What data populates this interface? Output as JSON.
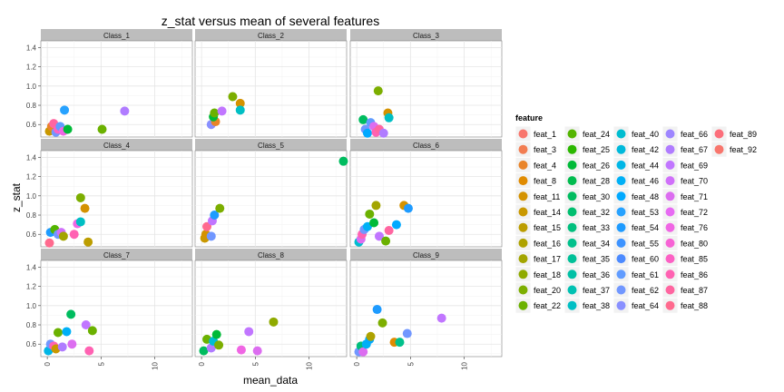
{
  "chart_data": {
    "type": "scatter",
    "title": "z_stat versus mean of several features",
    "xlabel": "mean_data",
    "ylabel": "z_stat",
    "xlim": [
      -0.6,
      13.5
    ],
    "ylim": [
      0.47,
      1.47
    ],
    "x_ticks": [
      0,
      5,
      10
    ],
    "y_ticks": [
      0.6,
      0.8,
      1.0,
      1.2,
      1.4
    ],
    "x_tick_labels": [
      "0",
      "5",
      "10"
    ],
    "y_tick_labels": [
      "0.6",
      "0.8",
      "1.0",
      "1.2",
      "1.4"
    ],
    "grid": true,
    "legend_position": "right",
    "legend_title": "feature",
    "features": [
      {
        "name": "feat_1",
        "color": "#F8766D"
      },
      {
        "name": "feat_3",
        "color": "#F27D52"
      },
      {
        "name": "feat_4",
        "color": "#E98429"
      },
      {
        "name": "feat_8",
        "color": "#E08B00"
      },
      {
        "name": "feat_11",
        "color": "#D49200"
      },
      {
        "name": "feat_14",
        "color": "#C99800"
      },
      {
        "name": "feat_15",
        "color": "#BC9D00"
      },
      {
        "name": "feat_16",
        "color": "#AEA200"
      },
      {
        "name": "feat_17",
        "color": "#A3A500"
      },
      {
        "name": "feat_18",
        "color": "#8FAA00"
      },
      {
        "name": "feat_20",
        "color": "#7CAE00"
      },
      {
        "name": "feat_22",
        "color": "#6BB100"
      },
      {
        "name": "feat_24",
        "color": "#53B400"
      },
      {
        "name": "feat_25",
        "color": "#2BB700"
      },
      {
        "name": "feat_26",
        "color": "#00BA38"
      },
      {
        "name": "feat_28",
        "color": "#00BB4E"
      },
      {
        "name": "feat_30",
        "color": "#00BC5F"
      },
      {
        "name": "feat_32",
        "color": "#00BE6F"
      },
      {
        "name": "feat_33",
        "color": "#00BF7D"
      },
      {
        "name": "feat_34",
        "color": "#00C08B"
      },
      {
        "name": "feat_35",
        "color": "#00C098"
      },
      {
        "name": "feat_36",
        "color": "#00C0A5"
      },
      {
        "name": "feat_37",
        "color": "#00C1B2"
      },
      {
        "name": "feat_38",
        "color": "#00BFC4"
      },
      {
        "name": "feat_40",
        "color": "#00BDD0"
      },
      {
        "name": "feat_42",
        "color": "#00B9DB"
      },
      {
        "name": "feat_44",
        "color": "#00B6E6"
      },
      {
        "name": "feat_46",
        "color": "#00B0F6"
      },
      {
        "name": "feat_48",
        "color": "#00A9FF"
      },
      {
        "name": "feat_53",
        "color": "#27A2FF"
      },
      {
        "name": "feat_54",
        "color": "#1E9BFF"
      },
      {
        "name": "feat_55",
        "color": "#3D93FF"
      },
      {
        "name": "feat_60",
        "color": "#4C8AFF"
      },
      {
        "name": "feat_61",
        "color": "#619CFF"
      },
      {
        "name": "feat_62",
        "color": "#7197FF"
      },
      {
        "name": "feat_64",
        "color": "#8990FF"
      },
      {
        "name": "feat_66",
        "color": "#9E86FF"
      },
      {
        "name": "feat_67",
        "color": "#B07CFF"
      },
      {
        "name": "feat_69",
        "color": "#C176FF"
      },
      {
        "name": "feat_70",
        "color": "#D070FA"
      },
      {
        "name": "feat_71",
        "color": "#DC6DF0"
      },
      {
        "name": "feat_72",
        "color": "#E76BF3"
      },
      {
        "name": "feat_76",
        "color": "#F066E4"
      },
      {
        "name": "feat_80",
        "color": "#F763D5"
      },
      {
        "name": "feat_85",
        "color": "#FC61C4"
      },
      {
        "name": "feat_86",
        "color": "#FF62B2"
      },
      {
        "name": "feat_87",
        "color": "#FF65A0"
      },
      {
        "name": "feat_88",
        "color": "#FF6A8E"
      },
      {
        "name": "feat_89",
        "color": "#FC6F7B"
      },
      {
        "name": "feat_92",
        "color": "#F8766D"
      }
    ],
    "panels": [
      {
        "name": "Class_1",
        "points": [
          {
            "x": 0.2,
            "y": 0.53,
            "feature": "feat_14"
          },
          {
            "x": 0.4,
            "y": 0.58,
            "feature": "feat_4"
          },
          {
            "x": 0.6,
            "y": 0.61,
            "feature": "feat_87"
          },
          {
            "x": 0.8,
            "y": 0.52,
            "feature": "feat_62"
          },
          {
            "x": 1.0,
            "y": 0.55,
            "feature": "feat_85"
          },
          {
            "x": 1.2,
            "y": 0.58,
            "feature": "feat_61"
          },
          {
            "x": 1.5,
            "y": 0.53,
            "feature": "feat_76"
          },
          {
            "x": 1.9,
            "y": 0.55,
            "feature": "feat_26"
          },
          {
            "x": 1.6,
            "y": 0.75,
            "feature": "feat_53"
          },
          {
            "x": 5.1,
            "y": 0.55,
            "feature": "feat_22"
          },
          {
            "x": 7.2,
            "y": 0.74,
            "feature": "feat_67"
          }
        ]
      },
      {
        "name": "Class_2",
        "points": [
          {
            "x": 0.9,
            "y": 0.6,
            "feature": "feat_64"
          },
          {
            "x": 1.3,
            "y": 0.63,
            "feature": "feat_4"
          },
          {
            "x": 1.1,
            "y": 0.68,
            "feature": "feat_26"
          },
          {
            "x": 1.2,
            "y": 0.72,
            "feature": "feat_22"
          },
          {
            "x": 1.9,
            "y": 0.74,
            "feature": "feat_69"
          },
          {
            "x": 2.9,
            "y": 0.89,
            "feature": "feat_20"
          },
          {
            "x": 3.6,
            "y": 0.82,
            "feature": "feat_11"
          },
          {
            "x": 3.6,
            "y": 0.75,
            "feature": "feat_38"
          }
        ]
      },
      {
        "name": "Class_3",
        "points": [
          {
            "x": 0.6,
            "y": 0.65,
            "feature": "feat_30"
          },
          {
            "x": 0.8,
            "y": 0.55,
            "feature": "feat_62"
          },
          {
            "x": 1.0,
            "y": 0.51,
            "feature": "feat_48"
          },
          {
            "x": 1.3,
            "y": 0.62,
            "feature": "feat_61"
          },
          {
            "x": 1.6,
            "y": 0.58,
            "feature": "feat_71"
          },
          {
            "x": 1.8,
            "y": 0.52,
            "feature": "feat_86"
          },
          {
            "x": 2.1,
            "y": 0.55,
            "feature": "feat_87"
          },
          {
            "x": 2.5,
            "y": 0.51,
            "feature": "feat_67"
          },
          {
            "x": 2.0,
            "y": 0.95,
            "feature": "feat_20"
          },
          {
            "x": 2.9,
            "y": 0.72,
            "feature": "feat_11"
          },
          {
            "x": 3.0,
            "y": 0.67,
            "feature": "feat_38"
          }
        ]
      },
      {
        "name": "Class_4",
        "points": [
          {
            "x": 0.2,
            "y": 0.51,
            "feature": "feat_88"
          },
          {
            "x": 0.3,
            "y": 0.62,
            "feature": "feat_54"
          },
          {
            "x": 0.7,
            "y": 0.65,
            "feature": "feat_24"
          },
          {
            "x": 1.0,
            "y": 0.6,
            "feature": "feat_62"
          },
          {
            "x": 1.3,
            "y": 0.62,
            "feature": "feat_70"
          },
          {
            "x": 1.5,
            "y": 0.58,
            "feature": "feat_17"
          },
          {
            "x": 2.5,
            "y": 0.6,
            "feature": "feat_86"
          },
          {
            "x": 2.8,
            "y": 0.71,
            "feature": "feat_76"
          },
          {
            "x": 3.1,
            "y": 0.73,
            "feature": "feat_38"
          },
          {
            "x": 3.1,
            "y": 0.98,
            "feature": "feat_20"
          },
          {
            "x": 3.5,
            "y": 0.87,
            "feature": "feat_11"
          },
          {
            "x": 3.8,
            "y": 0.52,
            "feature": "feat_15"
          }
        ]
      },
      {
        "name": "Class_5",
        "points": [
          {
            "x": 0.3,
            "y": 0.56,
            "feature": "feat_14"
          },
          {
            "x": 0.4,
            "y": 0.6,
            "feature": "feat_11"
          },
          {
            "x": 0.5,
            "y": 0.68,
            "feature": "feat_88"
          },
          {
            "x": 0.9,
            "y": 0.58,
            "feature": "feat_62"
          },
          {
            "x": 1.0,
            "y": 0.74,
            "feature": "feat_69"
          },
          {
            "x": 1.2,
            "y": 0.8,
            "feature": "feat_54"
          },
          {
            "x": 1.7,
            "y": 0.87,
            "feature": "feat_20"
          },
          {
            "x": 13.2,
            "y": 1.36,
            "feature": "feat_30"
          }
        ]
      },
      {
        "name": "Class_6",
        "points": [
          {
            "x": 0.2,
            "y": 0.52,
            "feature": "feat_40"
          },
          {
            "x": 0.4,
            "y": 0.55,
            "feature": "feat_71"
          },
          {
            "x": 0.5,
            "y": 0.6,
            "feature": "feat_86"
          },
          {
            "x": 0.7,
            "y": 0.65,
            "feature": "feat_62"
          },
          {
            "x": 1.0,
            "y": 0.68,
            "feature": "feat_46"
          },
          {
            "x": 1.2,
            "y": 0.81,
            "feature": "feat_22"
          },
          {
            "x": 1.6,
            "y": 0.72,
            "feature": "feat_26"
          },
          {
            "x": 1.8,
            "y": 0.9,
            "feature": "feat_17"
          },
          {
            "x": 2.1,
            "y": 0.58,
            "feature": "feat_69"
          },
          {
            "x": 2.7,
            "y": 0.53,
            "feature": "feat_22"
          },
          {
            "x": 3.0,
            "y": 0.64,
            "feature": "feat_87"
          },
          {
            "x": 3.7,
            "y": 0.7,
            "feature": "feat_48"
          },
          {
            "x": 4.4,
            "y": 0.9,
            "feature": "feat_11"
          },
          {
            "x": 4.8,
            "y": 0.87,
            "feature": "feat_54"
          }
        ]
      },
      {
        "name": "Class_7",
        "points": [
          {
            "x": 0.1,
            "y": 0.53,
            "feature": "feat_44"
          },
          {
            "x": 0.3,
            "y": 0.6,
            "feature": "feat_62"
          },
          {
            "x": 0.6,
            "y": 0.58,
            "feature": "feat_86"
          },
          {
            "x": 0.8,
            "y": 0.55,
            "feature": "feat_14"
          },
          {
            "x": 1.0,
            "y": 0.72,
            "feature": "feat_22"
          },
          {
            "x": 1.4,
            "y": 0.57,
            "feature": "feat_67"
          },
          {
            "x": 1.8,
            "y": 0.73,
            "feature": "feat_46"
          },
          {
            "x": 2.2,
            "y": 0.91,
            "feature": "feat_30"
          },
          {
            "x": 2.3,
            "y": 0.6,
            "feature": "feat_71"
          },
          {
            "x": 3.6,
            "y": 0.8,
            "feature": "feat_69"
          },
          {
            "x": 3.9,
            "y": 0.53,
            "feature": "feat_86"
          },
          {
            "x": 4.2,
            "y": 0.74,
            "feature": "feat_22"
          }
        ]
      },
      {
        "name": "Class_8",
        "points": [
          {
            "x": 0.2,
            "y": 0.53,
            "feature": "feat_30"
          },
          {
            "x": 0.5,
            "y": 0.65,
            "feature": "feat_22"
          },
          {
            "x": 0.9,
            "y": 0.56,
            "feature": "feat_67"
          },
          {
            "x": 1.1,
            "y": 0.63,
            "feature": "feat_40"
          },
          {
            "x": 1.4,
            "y": 0.7,
            "feature": "feat_26"
          },
          {
            "x": 1.6,
            "y": 0.59,
            "feature": "feat_20"
          },
          {
            "x": 3.7,
            "y": 0.54,
            "feature": "feat_76"
          },
          {
            "x": 4.4,
            "y": 0.73,
            "feature": "feat_69"
          },
          {
            "x": 5.2,
            "y": 0.53,
            "feature": "feat_71"
          },
          {
            "x": 6.7,
            "y": 0.83,
            "feature": "feat_18"
          }
        ]
      },
      {
        "name": "Class_9",
        "points": [
          {
            "x": 0.2,
            "y": 0.52,
            "feature": "feat_62"
          },
          {
            "x": 0.4,
            "y": 0.58,
            "feature": "feat_33"
          },
          {
            "x": 0.6,
            "y": 0.52,
            "feature": "feat_71"
          },
          {
            "x": 0.9,
            "y": 0.6,
            "feature": "feat_46"
          },
          {
            "x": 1.2,
            "y": 0.65,
            "feature": "feat_48"
          },
          {
            "x": 1.3,
            "y": 0.68,
            "feature": "feat_16"
          },
          {
            "x": 1.9,
            "y": 0.96,
            "feature": "feat_54"
          },
          {
            "x": 2.4,
            "y": 0.82,
            "feature": "feat_20"
          },
          {
            "x": 3.5,
            "y": 0.62,
            "feature": "feat_8"
          },
          {
            "x": 4.0,
            "y": 0.62,
            "feature": "feat_34"
          },
          {
            "x": 4.7,
            "y": 0.71,
            "feature": "feat_62"
          },
          {
            "x": 7.9,
            "y": 0.87,
            "feature": "feat_69"
          }
        ]
      }
    ]
  }
}
